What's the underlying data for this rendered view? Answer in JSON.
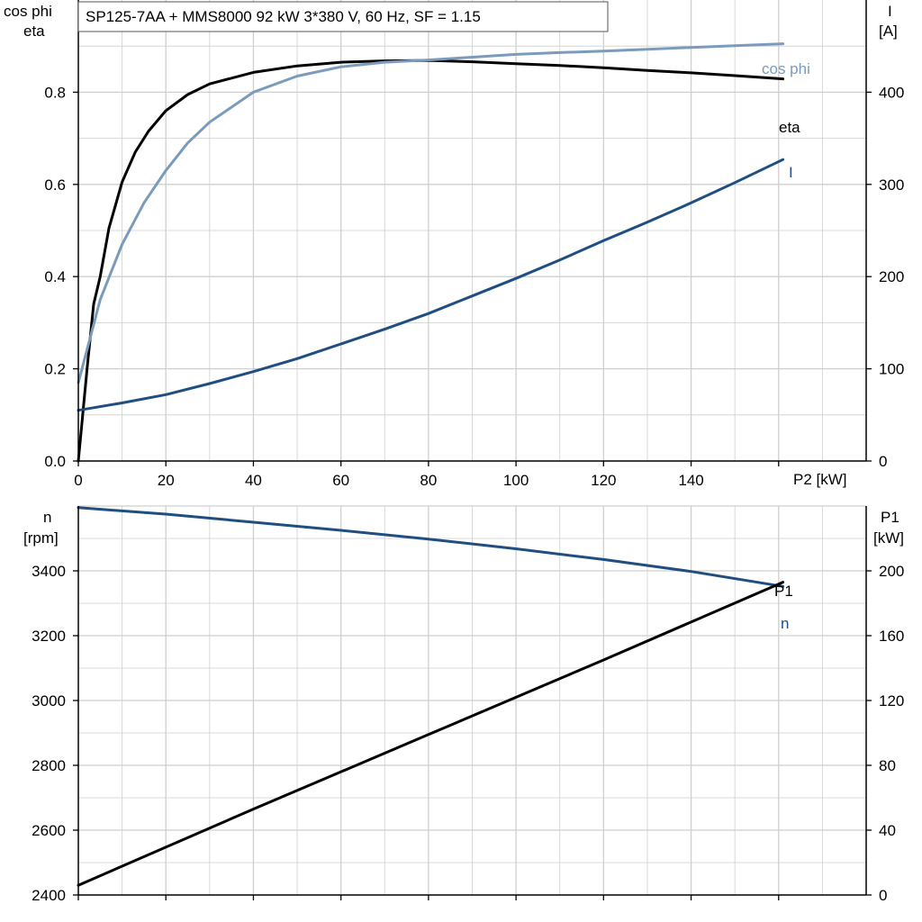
{
  "title": "SP125-7AA + MMS8000   92 kW   3*380 V, 60 Hz, SF = 1.15",
  "colors": {
    "grid": "#cfcfcf",
    "axis": "#000000",
    "eta": "#000000",
    "cosphi": "#7b9bbd",
    "current": "#1f4e80",
    "speed": "#1f4e80",
    "p1": "#000000"
  },
  "chart_data": [
    {
      "type": "line",
      "panel": "top",
      "xlabel": "P2 [kW]",
      "ylabel_left": [
        "cos phi",
        "eta"
      ],
      "ylabel_right": [
        "I",
        "[A]"
      ],
      "xlim": [
        0,
        180
      ],
      "ylim_left": [
        0,
        1.0
      ],
      "ylim_right": [
        0,
        500
      ],
      "xticks": [
        "0",
        "20",
        "40",
        "60",
        "80",
        "100",
        "120",
        "140"
      ],
      "yticks_left": [
        "0.0",
        "0.2",
        "0.4",
        "0.6",
        "0.8"
      ],
      "yticks_right": [
        "0",
        "100",
        "200",
        "300",
        "400"
      ],
      "grid": true,
      "series": [
        {
          "name": "eta",
          "axis": "left",
          "x": [
            0,
            2,
            3.5,
            5,
            7,
            10,
            13,
            16,
            20,
            25,
            30,
            40,
            50,
            60,
            70,
            80,
            90,
            100,
            110,
            120,
            130,
            140,
            150,
            161
          ],
          "y": [
            0.0,
            0.2,
            0.34,
            0.4,
            0.505,
            0.605,
            0.67,
            0.715,
            0.76,
            0.795,
            0.818,
            0.843,
            0.857,
            0.865,
            0.868,
            0.869,
            0.866,
            0.862,
            0.858,
            0.853,
            0.847,
            0.842,
            0.836,
            0.829
          ]
        },
        {
          "name": "cos phi",
          "axis": "left",
          "x": [
            0,
            5,
            10,
            15,
            20,
            25,
            30,
            40,
            50,
            60,
            70,
            80,
            90,
            100,
            110,
            120,
            130,
            140,
            150,
            161
          ],
          "y": [
            0.17,
            0.35,
            0.47,
            0.56,
            0.63,
            0.69,
            0.735,
            0.8,
            0.835,
            0.855,
            0.865,
            0.87,
            0.876,
            0.882,
            0.886,
            0.889,
            0.893,
            0.897,
            0.901,
            0.905
          ]
        },
        {
          "name": "I",
          "axis": "right",
          "x": [
            0,
            10,
            20,
            30,
            40,
            50,
            60,
            70,
            80,
            90,
            100,
            110,
            120,
            130,
            140,
            150,
            161
          ],
          "y": [
            55,
            63,
            72,
            84,
            97,
            111,
            127,
            143,
            160,
            179,
            198,
            218,
            239,
            259,
            280,
            302,
            327
          ]
        }
      ],
      "annotations": [
        "cos phi",
        "eta",
        "I"
      ]
    },
    {
      "type": "line",
      "panel": "bottom",
      "ylabel_left": [
        "n",
        "[rpm]"
      ],
      "ylabel_right": [
        "P1",
        "[kW]"
      ],
      "xlim": [
        0,
        180
      ],
      "ylim_left": [
        2400,
        3600
      ],
      "ylim_right": [
        0,
        240
      ],
      "yticks_left": [
        "2400",
        "2600",
        "2800",
        "3000",
        "3200",
        "3400"
      ],
      "yticks_right": [
        "0",
        "40",
        "80",
        "120",
        "160",
        "200"
      ],
      "grid": true,
      "series": [
        {
          "name": "n",
          "axis": "left",
          "x": [
            0,
            20,
            40,
            60,
            80,
            100,
            120,
            140,
            161
          ],
          "y": [
            3595,
            3575,
            3550,
            3525,
            3498,
            3468,
            3435,
            3398,
            3352
          ]
        },
        {
          "name": "P1",
          "axis": "right",
          "x": [
            0,
            40,
            80,
            120,
            161
          ],
          "y": [
            6,
            53,
            99,
            145,
            193
          ]
        }
      ],
      "annotations": [
        "P1",
        "n"
      ]
    }
  ]
}
